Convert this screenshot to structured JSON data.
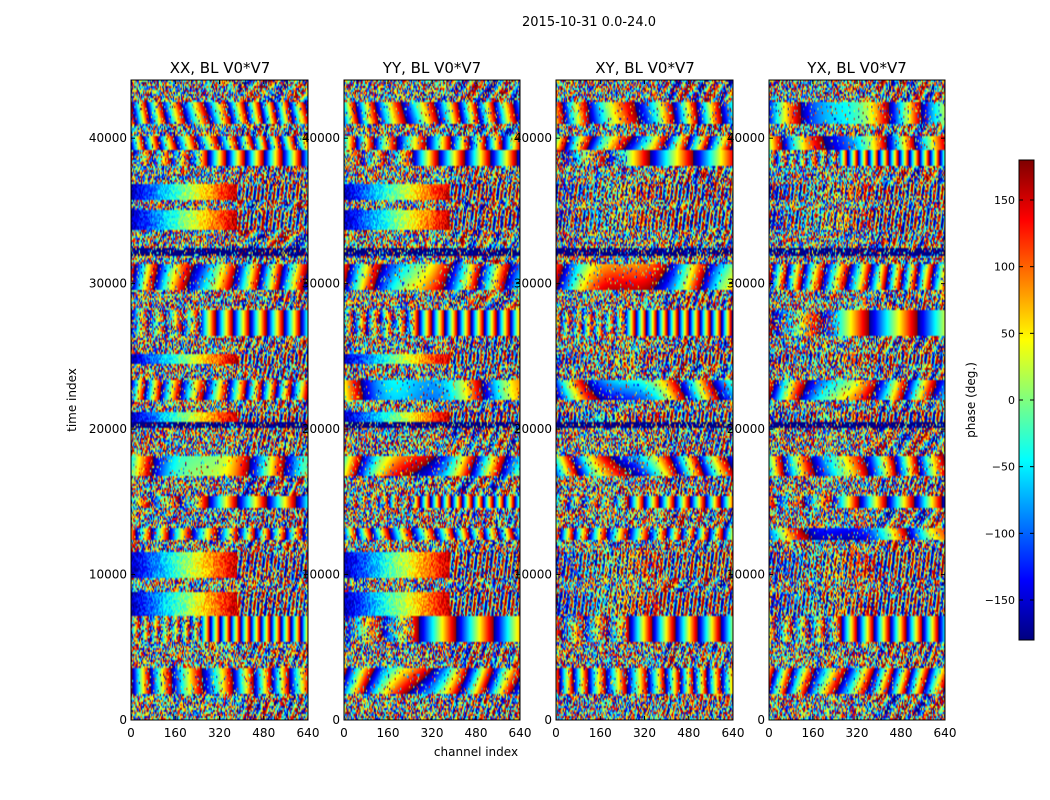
{
  "figure": {
    "suptitle": "2015-10-31 0.0-24.0"
  },
  "chart_data": {
    "type": "heatmap",
    "xlabel": "channel index",
    "ylabel": "time index",
    "xlim": [
      0,
      640
    ],
    "ylim": [
      0,
      44000
    ],
    "x_ticks": [
      0,
      160,
      320,
      480,
      640
    ],
    "x_tick_labels": [
      "0",
      "160",
      "320",
      "480",
      "640"
    ],
    "y_ticks": [
      0,
      10000,
      20000,
      30000,
      40000
    ],
    "y_tick_labels": [
      "0",
      "10000",
      "20000",
      "30000",
      "40000"
    ],
    "panels": [
      {
        "title": "XX, BL V0*V7",
        "polarization": "XX"
      },
      {
        "title": "YY, BL V0*V7",
        "polarization": "YY"
      },
      {
        "title": "XY, BL V0*V7",
        "polarization": "XY"
      },
      {
        "title": "YX, BL V0*V7",
        "polarization": "YX"
      }
    ],
    "colorbar": {
      "label": "phase (deg.)",
      "range": [
        -180,
        180
      ],
      "ticks": [
        -150,
        -100,
        -50,
        0,
        50,
        100,
        150
      ],
      "tick_labels": [
        "−150",
        "−100",
        "−50",
        "0",
        "50",
        "100",
        "150"
      ],
      "colormap": "jet"
    }
  },
  "colors": {
    "axis": "#000000",
    "background": "#ffffff"
  }
}
